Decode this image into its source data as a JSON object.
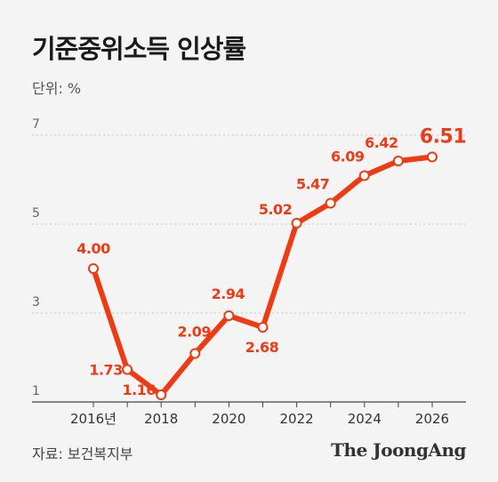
{
  "header": {
    "title": "기준중위소득 인상률",
    "unit": "단위: %"
  },
  "footer": {
    "source": "자료: 보건복지부",
    "brand": "The JoongAng"
  },
  "colors": {
    "line": "#ee3b14",
    "label": "#ee3b14",
    "grid": "#c8c8c8",
    "background": "#f4f4f4"
  },
  "chart_data": {
    "type": "line",
    "title": "기준중위소득 인상률",
    "ylabel": "단위: %",
    "xlabel": "",
    "x": [
      2016,
      2017,
      2018,
      2019,
      2020,
      2021,
      2022,
      2023,
      2024,
      2025,
      2026
    ],
    "series": [
      {
        "values": [
          4.0,
          1.73,
          1.16,
          2.09,
          2.94,
          2.68,
          5.02,
          5.47,
          6.09,
          6.42,
          6.51
        ],
        "labels": [
          "4.00",
          "1.73",
          "1.16",
          "2.09",
          "2.94",
          "2.68",
          "5.02",
          "5.47",
          "6.09",
          "6.42",
          "6.51"
        ]
      }
    ],
    "xticks": [
      {
        "x": 2016,
        "label": "2016년"
      },
      {
        "x": 2018,
        "label": "2018"
      },
      {
        "x": 2020,
        "label": "2020"
      },
      {
        "x": 2022,
        "label": "2022"
      },
      {
        "x": 2024,
        "label": "2024"
      },
      {
        "x": 2026,
        "label": "2026"
      }
    ],
    "yticks": [
      {
        "y": 1,
        "label": "1"
      },
      {
        "y": 3,
        "label": "3"
      },
      {
        "y": 5,
        "label": "5"
      },
      {
        "y": 7,
        "label": "7"
      }
    ],
    "ylim": [
      1,
      7
    ],
    "xlim": [
      2015.25,
      2026.95
    ],
    "grid": "horizontal dashed"
  }
}
